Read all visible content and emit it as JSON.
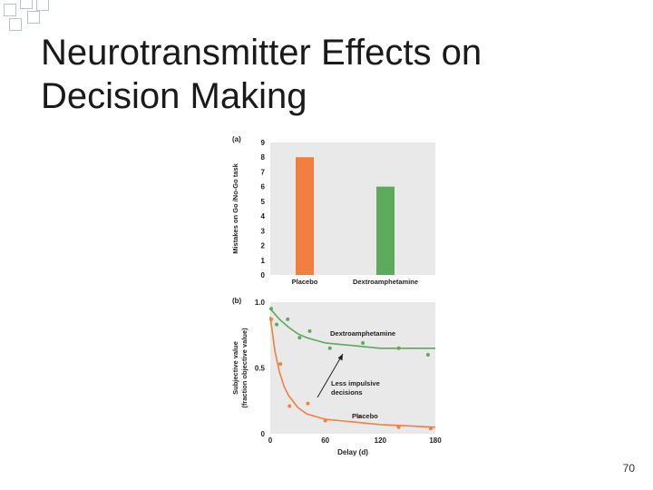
{
  "slide": {
    "title_line1": "Neurotransmitter Effects on",
    "title_line2": "Decision Making",
    "page_number": "70"
  },
  "chart_data": [
    {
      "type": "bar",
      "panel_label": "(a)",
      "ylabel": "Mistakes on Go /No-Go task",
      "xlabel": "",
      "ylim": [
        0,
        9
      ],
      "yticks": [
        "0",
        "1",
        "2",
        "3",
        "4",
        "5",
        "6",
        "7",
        "8",
        "9"
      ],
      "categories": [
        "Placebo",
        "Dextroamphetamine"
      ],
      "values": [
        8,
        6
      ],
      "colors": [
        "#f08040",
        "#5caa5c"
      ],
      "grid": false
    },
    {
      "type": "line",
      "panel_label": "(b)",
      "xlabel": "Delay (d)",
      "ylabel_line1": "Subjective value",
      "ylabel_line2": "(fraction objective value)",
      "xlim": [
        0,
        180
      ],
      "ylim": [
        0,
        1.0
      ],
      "xticks": [
        "0",
        "60",
        "120",
        "180"
      ],
      "yticks": [
        "0",
        "0.5",
        "1.0"
      ],
      "grid": false,
      "series": [
        {
          "name": "Dextroamphetamine",
          "color": "#5caa5c",
          "points": [
            [
              1,
              0.95
            ],
            [
              7,
              0.83
            ],
            [
              19,
              0.87
            ],
            [
              32,
              0.73
            ],
            [
              43,
              0.78
            ],
            [
              65,
              0.65
            ],
            [
              101,
              0.69
            ],
            [
              140,
              0.65
            ],
            [
              172,
              0.6
            ]
          ],
          "curve": [
            [
              0,
              0.95
            ],
            [
              10,
              0.87
            ],
            [
              20,
              0.81
            ],
            [
              30,
              0.76
            ],
            [
              40,
              0.73
            ],
            [
              50,
              0.71
            ],
            [
              60,
              0.69
            ],
            [
              75,
              0.68
            ],
            [
              90,
              0.67
            ],
            [
              120,
              0.65
            ],
            [
              150,
              0.65
            ],
            [
              180,
              0.65
            ]
          ]
        },
        {
          "name": "Placebo",
          "color": "#f08040",
          "points": [
            [
              1,
              0.87
            ],
            [
              11,
              0.53
            ],
            [
              21,
              0.21
            ],
            [
              41,
              0.23
            ],
            [
              60,
              0.1
            ],
            [
              97,
              0.13
            ],
            [
              140,
              0.05
            ],
            [
              175,
              0.04
            ]
          ],
          "curve": [
            [
              0,
              0.89
            ],
            [
              5,
              0.63
            ],
            [
              10,
              0.47
            ],
            [
              15,
              0.36
            ],
            [
              20,
              0.29
            ],
            [
              30,
              0.2
            ],
            [
              40,
              0.15
            ],
            [
              60,
              0.11
            ],
            [
              90,
              0.09
            ],
            [
              120,
              0.07
            ],
            [
              150,
              0.06
            ],
            [
              180,
              0.05
            ]
          ]
        }
      ],
      "annotation": {
        "line1": "Less impulsive",
        "line2": "decisions"
      }
    }
  ]
}
